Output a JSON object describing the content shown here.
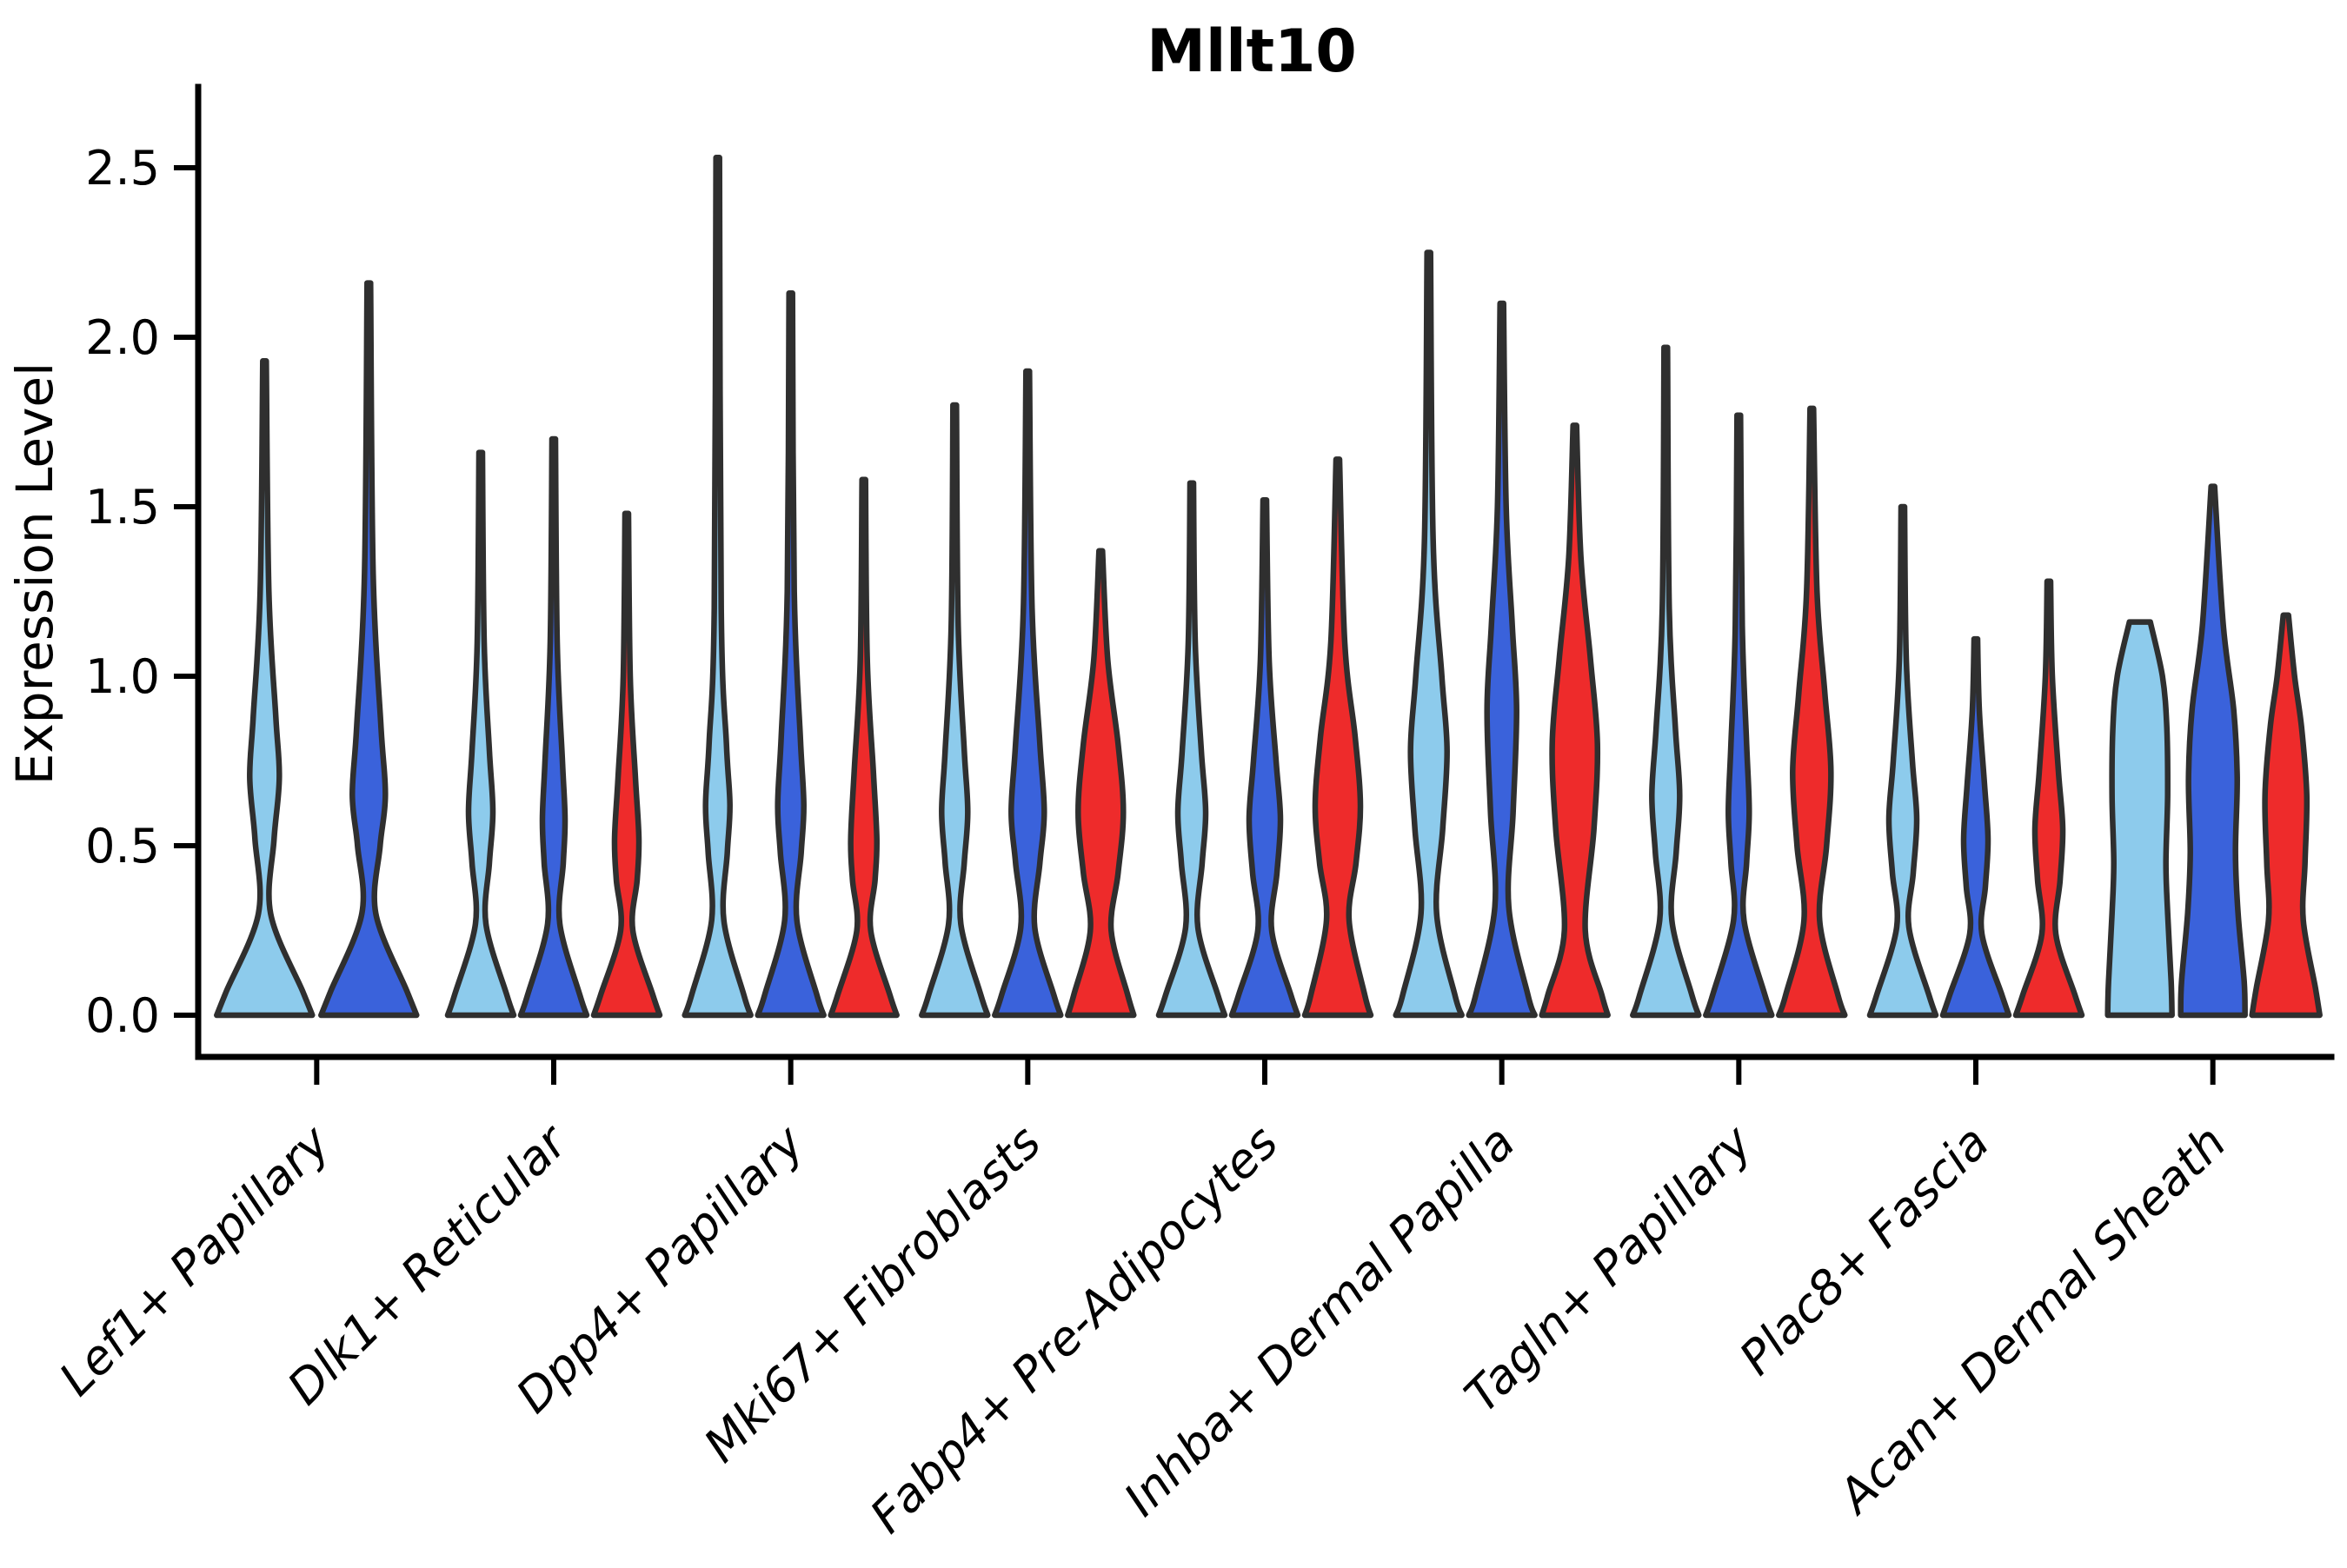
{
  "chart_data": {
    "type": "violin",
    "title": "Mllt10",
    "xlabel": "",
    "ylabel": "Expression Level",
    "ylim": [
      0,
      2.74
    ],
    "grid": false,
    "legend": "none",
    "yticks": [
      {
        "label": "0.0",
        "value": 0.0
      },
      {
        "label": "0.5",
        "value": 0.5
      },
      {
        "label": "1.0",
        "value": 1.0
      },
      {
        "label": "1.5",
        "value": 1.5
      },
      {
        "label": "2.0",
        "value": 2.0
      },
      {
        "label": "2.5",
        "value": 2.5
      }
    ],
    "hue_fills": [
      "#8DCBEC",
      "#3A62DB",
      "#EE2B2B"
    ],
    "outline_color": "#2F2F2F",
    "categories": [
      "Lef1+ Papillary",
      "Dlk1+ Reticular",
      "Dpp4+ Papillary",
      "Mki67+ Fibroblasts",
      "Fabp4+ Pre-Adipocytes",
      "Inhba+ Dermal Papilla",
      "Tagln+ Papillary",
      "Plac8+ Fascia",
      "Acan+ Dermal Sheath"
    ],
    "groups": [
      {
        "category": "Lef1+ Papillary",
        "violins": [
          {
            "hue": 0,
            "max": 1.93,
            "profile": [
              [
                0,
                55
              ],
              [
                0.07,
                44
              ],
              [
                0.3,
                7
              ],
              [
                0.52,
                11
              ],
              [
                0.7,
                17
              ],
              [
                0.88,
                13
              ],
              [
                1.25,
                5
              ],
              [
                1.93,
                2
              ]
            ]
          },
          {
            "hue": 1,
            "max": 2.16,
            "profile": [
              [
                0,
                55
              ],
              [
                0.07,
                44
              ],
              [
                0.3,
                8
              ],
              [
                0.5,
                13
              ],
              [
                0.65,
                19
              ],
              [
                0.85,
                14
              ],
              [
                1.3,
                5
              ],
              [
                2.16,
                2
              ]
            ]
          }
        ]
      },
      {
        "category": "Dlk1+ Reticular",
        "violins": [
          {
            "hue": 0,
            "max": 1.66,
            "profile": [
              [
                0,
                38
              ],
              [
                0.06,
                30
              ],
              [
                0.27,
                6
              ],
              [
                0.45,
                10
              ],
              [
                0.6,
                14
              ],
              [
                0.78,
                10
              ],
              [
                1.1,
                4
              ],
              [
                1.66,
                2
              ]
            ]
          },
          {
            "hue": 1,
            "max": 1.7,
            "profile": [
              [
                0,
                38
              ],
              [
                0.06,
                30
              ],
              [
                0.27,
                7
              ],
              [
                0.45,
                11
              ],
              [
                0.58,
                13
              ],
              [
                0.75,
                10
              ],
              [
                1.1,
                4
              ],
              [
                1.7,
                2
              ]
            ]
          },
          {
            "hue": 2,
            "max": 1.48,
            "profile": [
              [
                0,
                38
              ],
              [
                0.06,
                30
              ],
              [
                0.25,
                7
              ],
              [
                0.4,
                12
              ],
              [
                0.52,
                14
              ],
              [
                0.7,
                10
              ],
              [
                1.0,
                4
              ],
              [
                1.48,
                2
              ]
            ]
          }
        ]
      },
      {
        "category": "Dpp4+ Papillary",
        "violins": [
          {
            "hue": 0,
            "max": 2.53,
            "profile": [
              [
                0,
                38
              ],
              [
                0.06,
                30
              ],
              [
                0.28,
                7
              ],
              [
                0.48,
                11
              ],
              [
                0.62,
                14
              ],
              [
                0.8,
                10
              ],
              [
                1.2,
                4
              ],
              [
                2.53,
                2
              ]
            ]
          },
          {
            "hue": 1,
            "max": 2.13,
            "profile": [
              [
                0,
                38
              ],
              [
                0.06,
                30
              ],
              [
                0.28,
                7
              ],
              [
                0.48,
                12
              ],
              [
                0.62,
                15
              ],
              [
                0.82,
                11
              ],
              [
                1.25,
                4
              ],
              [
                2.13,
                2
              ]
            ]
          },
          {
            "hue": 2,
            "max": 1.58,
            "profile": [
              [
                0,
                38
              ],
              [
                0.06,
                30
              ],
              [
                0.25,
                8
              ],
              [
                0.4,
                13
              ],
              [
                0.52,
                15
              ],
              [
                0.72,
                11
              ],
              [
                1.05,
                4
              ],
              [
                1.58,
                2
              ]
            ]
          }
        ]
      },
      {
        "category": "Mki67+ Fibroblasts",
        "violins": [
          {
            "hue": 0,
            "max": 1.8,
            "profile": [
              [
                0,
                38
              ],
              [
                0.06,
                30
              ],
              [
                0.27,
                7
              ],
              [
                0.45,
                11
              ],
              [
                0.6,
                15
              ],
              [
                0.78,
                11
              ],
              [
                1.15,
                4
              ],
              [
                1.8,
                2
              ]
            ]
          },
          {
            "hue": 1,
            "max": 1.9,
            "profile": [
              [
                0,
                38
              ],
              [
                0.06,
                30
              ],
              [
                0.26,
                8
              ],
              [
                0.45,
                14
              ],
              [
                0.6,
                19
              ],
              [
                0.8,
                14
              ],
              [
                1.2,
                5
              ],
              [
                1.9,
                2
              ]
            ]
          },
          {
            "hue": 2,
            "max": 1.37,
            "profile": [
              [
                0,
                38
              ],
              [
                0.06,
                31
              ],
              [
                0.25,
                12
              ],
              [
                0.42,
                20
              ],
              [
                0.6,
                26
              ],
              [
                0.8,
                20
              ],
              [
                1.05,
                8
              ],
              [
                1.37,
                2
              ]
            ]
          }
        ]
      },
      {
        "category": "Fabp4+ Pre-Adipocytes",
        "violins": [
          {
            "hue": 0,
            "max": 1.57,
            "profile": [
              [
                0,
                38
              ],
              [
                0.06,
                30
              ],
              [
                0.26,
                7
              ],
              [
                0.45,
                12
              ],
              [
                0.6,
                16
              ],
              [
                0.78,
                11
              ],
              [
                1.1,
                4
              ],
              [
                1.57,
                2
              ]
            ]
          },
          {
            "hue": 1,
            "max": 1.52,
            "profile": [
              [
                0,
                38
              ],
              [
                0.06,
                30
              ],
              [
                0.25,
                8
              ],
              [
                0.42,
                14
              ],
              [
                0.58,
                18
              ],
              [
                0.75,
                13
              ],
              [
                1.05,
                5
              ],
              [
                1.52,
                2
              ]
            ]
          },
          {
            "hue": 2,
            "max": 1.64,
            "profile": [
              [
                0,
                38
              ],
              [
                0.06,
                31
              ],
              [
                0.28,
                13
              ],
              [
                0.45,
                21
              ],
              [
                0.62,
                26
              ],
              [
                0.82,
                20
              ],
              [
                1.1,
                8
              ],
              [
                1.64,
                2
              ]
            ]
          }
        ]
      },
      {
        "category": "Inhba+ Dermal Papilla",
        "violins": [
          {
            "hue": 0,
            "max": 2.25,
            "profile": [
              [
                0,
                38
              ],
              [
                0.06,
                30
              ],
              [
                0.3,
                9
              ],
              [
                0.55,
                16
              ],
              [
                0.78,
                21
              ],
              [
                1.0,
                15
              ],
              [
                1.4,
                5
              ],
              [
                2.25,
                2
              ]
            ]
          },
          {
            "hue": 1,
            "max": 2.1,
            "profile": [
              [
                0,
                38
              ],
              [
                0.06,
                30
              ],
              [
                0.32,
                8
              ],
              [
                0.6,
                13
              ],
              [
                0.9,
                17
              ],
              [
                1.15,
                12
              ],
              [
                1.5,
                5
              ],
              [
                2.1,
                2
              ]
            ]
          },
          {
            "hue": 2,
            "max": 1.74,
            "profile": [
              [
                0,
                38
              ],
              [
                0.06,
                31
              ],
              [
                0.25,
                12
              ],
              [
                0.55,
                22
              ],
              [
                0.8,
                26
              ],
              [
                1.05,
                18
              ],
              [
                1.35,
                7
              ],
              [
                1.74,
                2
              ]
            ]
          }
        ]
      },
      {
        "category": "Tagln+ Papillary",
        "violins": [
          {
            "hue": 0,
            "max": 1.97,
            "profile": [
              [
                0,
                38
              ],
              [
                0.06,
                30
              ],
              [
                0.28,
                7
              ],
              [
                0.48,
                12
              ],
              [
                0.65,
                16
              ],
              [
                0.85,
                11
              ],
              [
                1.2,
                4
              ],
              [
                1.97,
                2
              ]
            ]
          },
          {
            "hue": 1,
            "max": 1.77,
            "profile": [
              [
                0,
                38
              ],
              [
                0.06,
                30
              ],
              [
                0.28,
                6
              ],
              [
                0.45,
                9
              ],
              [
                0.6,
                12
              ],
              [
                0.8,
                9
              ],
              [
                1.15,
                4
              ],
              [
                1.77,
                2
              ]
            ]
          },
          {
            "hue": 2,
            "max": 1.79,
            "profile": [
              [
                0,
                38
              ],
              [
                0.06,
                30
              ],
              [
                0.28,
                9
              ],
              [
                0.5,
                17
              ],
              [
                0.72,
                22
              ],
              [
                0.95,
                15
              ],
              [
                1.25,
                6
              ],
              [
                1.79,
                2
              ]
            ]
          }
        ]
      },
      {
        "category": "Plac8+ Fascia",
        "violins": [
          {
            "hue": 0,
            "max": 1.5,
            "profile": [
              [
                0,
                38
              ],
              [
                0.06,
                30
              ],
              [
                0.26,
                7
              ],
              [
                0.42,
                12
              ],
              [
                0.58,
                16
              ],
              [
                0.75,
                11
              ],
              [
                1.05,
                4
              ],
              [
                1.5,
                2
              ]
            ]
          },
          {
            "hue": 1,
            "max": 1.11,
            "profile": [
              [
                0,
                38
              ],
              [
                0.06,
                30
              ],
              [
                0.24,
                7
              ],
              [
                0.38,
                11
              ],
              [
                0.52,
                14
              ],
              [
                0.68,
                10
              ],
              [
                0.9,
                4
              ],
              [
                1.11,
                2
              ]
            ]
          },
          {
            "hue": 2,
            "max": 1.28,
            "profile": [
              [
                0,
                38
              ],
              [
                0.06,
                30
              ],
              [
                0.24,
                8
              ],
              [
                0.4,
                13
              ],
              [
                0.55,
                16
              ],
              [
                0.72,
                11
              ],
              [
                1.0,
                4
              ],
              [
                1.28,
                2
              ]
            ]
          }
        ]
      },
      {
        "category": "Acan+ Dermal Sheath",
        "violins": [
          {
            "hue": 0,
            "max": 1.16,
            "blunt": true,
            "profile": [
              [
                0,
                37
              ],
              [
                0.1,
                36
              ],
              [
                0.3,
                32
              ],
              [
                0.45,
                30
              ],
              [
                0.65,
                32
              ],
              [
                0.85,
                31
              ],
              [
                1.0,
                26
              ],
              [
                1.16,
                12
              ]
            ]
          },
          {
            "hue": 1,
            "max": 1.56,
            "profile": [
              [
                0,
                37
              ],
              [
                0.1,
                36
              ],
              [
                0.3,
                29
              ],
              [
                0.48,
                26
              ],
              [
                0.7,
                28
              ],
              [
                0.9,
                24
              ],
              [
                1.15,
                12
              ],
              [
                1.56,
                2
              ]
            ]
          },
          {
            "hue": 2,
            "max": 1.18,
            "profile": [
              [
                0,
                39
              ],
              [
                0.08,
                34
              ],
              [
                0.28,
                20
              ],
              [
                0.45,
                22
              ],
              [
                0.65,
                24
              ],
              [
                0.85,
                18
              ],
              [
                1.0,
                10
              ],
              [
                1.18,
                3
              ]
            ]
          }
        ]
      }
    ]
  }
}
